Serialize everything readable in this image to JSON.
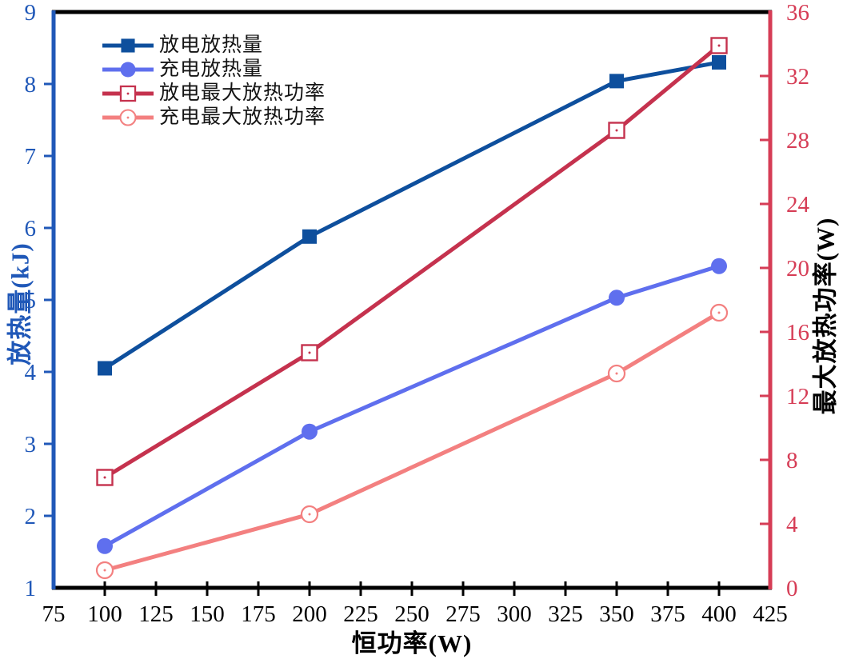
{
  "chart_data": {
    "type": "line",
    "title": "",
    "grid": false,
    "legend_position": "top-left-inside",
    "x_axis": {
      "label": "恒功率(W)",
      "min": 75,
      "max": 425,
      "ticks": [
        75,
        100,
        125,
        150,
        175,
        200,
        225,
        250,
        275,
        300,
        325,
        350,
        375,
        400,
        425
      ],
      "color": "#000000"
    },
    "left_axis": {
      "label": "放热量(kJ)",
      "min": 1,
      "max": 9,
      "ticks": [
        9,
        8,
        7,
        6,
        5,
        4,
        3,
        2,
        1
      ],
      "color": "#2058B8"
    },
    "right_axis": {
      "label": "最大放热功率(W)",
      "min": 0,
      "max": 36,
      "ticks": [
        36,
        32,
        28,
        24,
        20,
        16,
        12,
        8,
        4,
        0
      ],
      "color": "#D63D56",
      "label_color": "#000000"
    },
    "series": [
      {
        "name": "放电放热量",
        "axis": "left",
        "color": "#0E4F9D",
        "marker": "filled-square",
        "points": [
          [
            100,
            4.05
          ],
          [
            200,
            5.88
          ],
          [
            350,
            8.04
          ],
          [
            400,
            8.3
          ]
        ]
      },
      {
        "name": "充电放热量",
        "axis": "left",
        "color": "#5F6FEE",
        "marker": "filled-circle",
        "points": [
          [
            100,
            1.58
          ],
          [
            200,
            3.17
          ],
          [
            350,
            5.03
          ],
          [
            400,
            5.47
          ]
        ]
      },
      {
        "name": "放电最大放热功率",
        "axis": "right",
        "color": "#C5324E",
        "marker": "open-square",
        "points": [
          [
            100,
            6.9
          ],
          [
            200,
            14.7
          ],
          [
            350,
            28.6
          ],
          [
            400,
            33.9
          ]
        ]
      },
      {
        "name": "充电最大放热功率",
        "axis": "right",
        "color": "#F38080",
        "marker": "open-circle",
        "points": [
          [
            100,
            1.1
          ],
          [
            200,
            4.6
          ],
          [
            350,
            13.4
          ],
          [
            400,
            17.2
          ]
        ]
      }
    ]
  }
}
